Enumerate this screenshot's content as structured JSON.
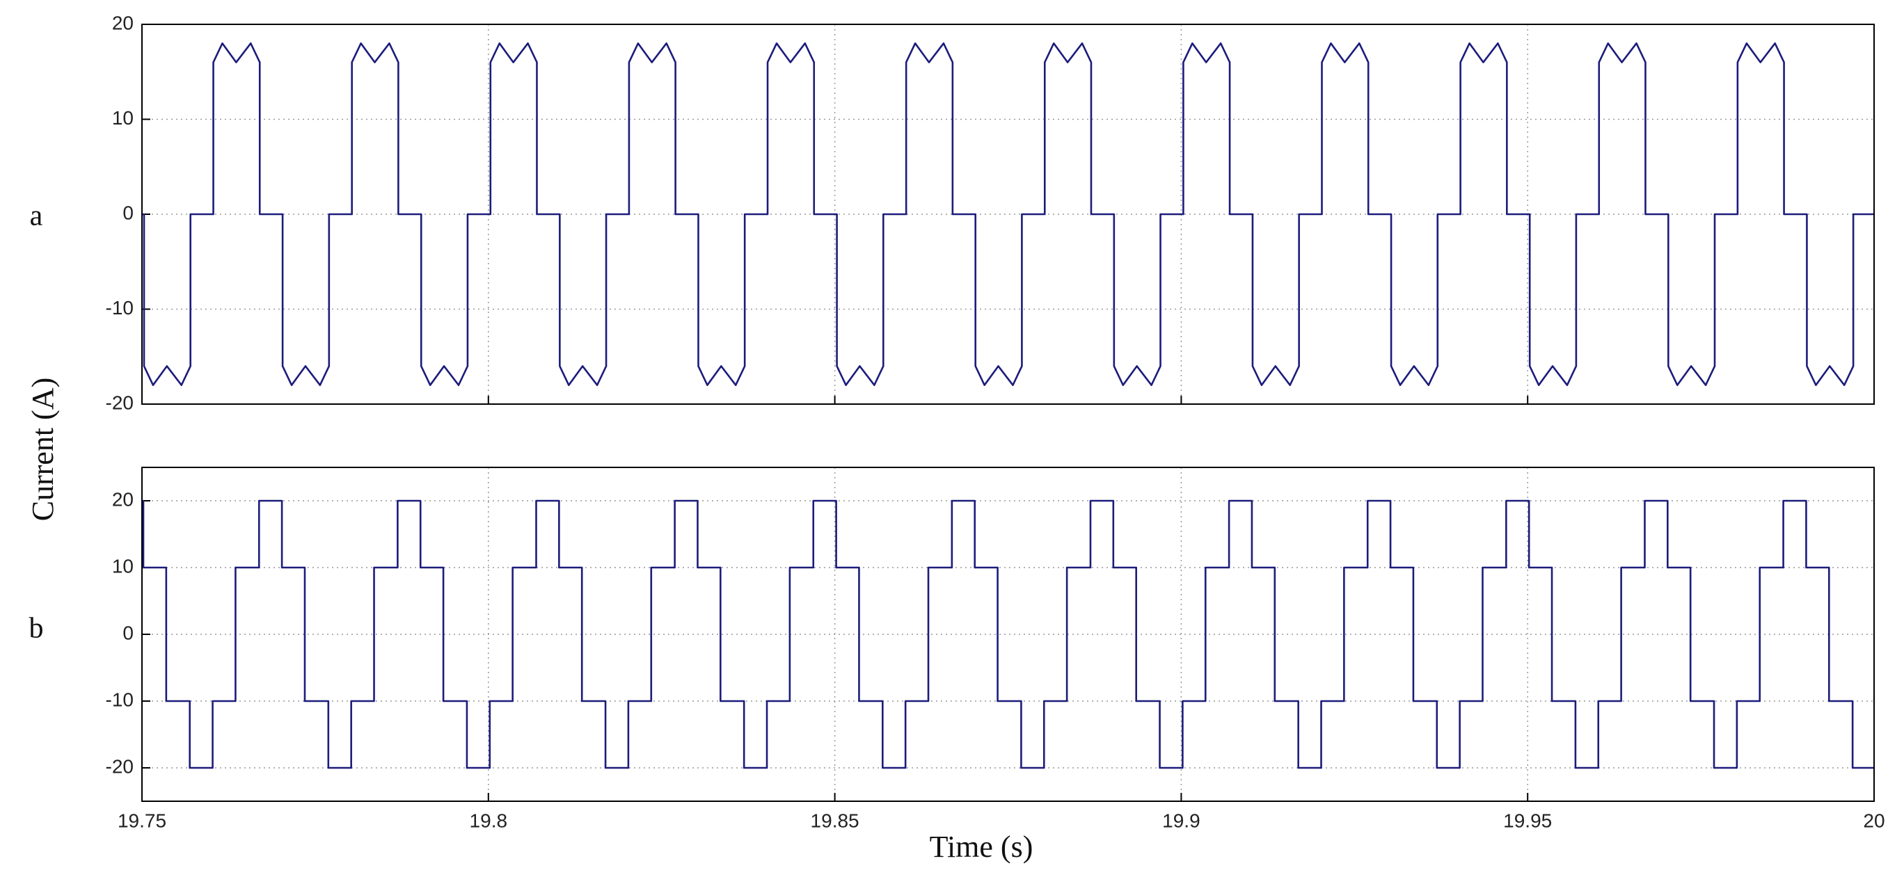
{
  "chart_data": [
    {
      "type": "line",
      "label": "a",
      "ylabel": "Current (A)",
      "color": "#1c1c7c",
      "grid": true,
      "xticklabels": false,
      "xlim": [
        19.75,
        20
      ],
      "xticks": [
        19.75,
        19.8,
        19.85,
        19.9,
        19.95,
        20
      ],
      "ylim": [
        -20,
        20
      ],
      "yticks": [
        -20,
        -10,
        0,
        10,
        20
      ],
      "x": [
        19.75,
        19.7503,
        19.7503,
        19.7516,
        19.7536,
        19.7557,
        19.757,
        19.757,
        19.7603,
        19.7603,
        19.7616,
        19.7636,
        19.7657,
        19.767,
        19.767,
        19.7703,
        19.7703,
        19.7716,
        19.7736,
        19.7757,
        19.777,
        19.777,
        19.7803,
        19.7803,
        19.7816,
        19.7836,
        19.7857,
        19.787,
        19.787,
        19.7903,
        19.7903,
        19.7916,
        19.7936,
        19.7957,
        19.797,
        19.797,
        19.8003,
        19.8003,
        19.8016,
        19.8036,
        19.8057,
        19.807,
        19.807,
        19.8103,
        19.8103,
        19.8116,
        19.8136,
        19.8157,
        19.817,
        19.817,
        19.8203,
        19.8203,
        19.8216,
        19.8236,
        19.8257,
        19.827,
        19.827,
        19.8303,
        19.8303,
        19.8316,
        19.8336,
        19.8357,
        19.837,
        19.837,
        19.8403,
        19.8403,
        19.8416,
        19.8436,
        19.8457,
        19.847,
        19.847,
        19.8503,
        19.8503,
        19.8516,
        19.8536,
        19.8557,
        19.857,
        19.857,
        19.8603,
        19.8603,
        19.8616,
        19.8636,
        19.8657,
        19.867,
        19.867,
        19.8703,
        19.8703,
        19.8716,
        19.8736,
        19.8757,
        19.877,
        19.877,
        19.8803,
        19.8803,
        19.8816,
        19.8836,
        19.8857,
        19.887,
        19.887,
        19.8903,
        19.8903,
        19.8916,
        19.8936,
        19.8957,
        19.897,
        19.897,
        19.9003,
        19.9003,
        19.9016,
        19.9036,
        19.9057,
        19.907,
        19.907,
        19.9103,
        19.9103,
        19.9116,
        19.9136,
        19.9157,
        19.917,
        19.917,
        19.9203,
        19.9203,
        19.9216,
        19.9236,
        19.9257,
        19.927,
        19.927,
        19.9303,
        19.9303,
        19.9316,
        19.9336,
        19.9357,
        19.937,
        19.937,
        19.9403,
        19.9403,
        19.9416,
        19.9436,
        19.9457,
        19.947,
        19.947,
        19.9503,
        19.9503,
        19.9516,
        19.9536,
        19.9557,
        19.957,
        19.957,
        19.9603,
        19.9603,
        19.9616,
        19.9636,
        19.9657,
        19.967,
        19.967,
        19.9703,
        19.9703,
        19.9716,
        19.9736,
        19.9757,
        19.977,
        19.977,
        19.9803,
        19.9803,
        19.9816,
        19.9836,
        19.9857,
        19.987,
        19.987,
        19.9903,
        19.9903,
        19.9916,
        19.9936,
        19.9957,
        19.997,
        19.997,
        20
      ],
      "values": [
        0,
        0,
        -16,
        -18,
        -16,
        -18,
        -16,
        0,
        0,
        16,
        18,
        16,
        18,
        16,
        0,
        0,
        -16,
        -18,
        -16,
        -18,
        -16,
        0,
        0,
        16,
        18,
        16,
        18,
        16,
        0,
        0,
        -16,
        -18,
        -16,
        -18,
        -16,
        0,
        0,
        16,
        18,
        16,
        18,
        16,
        0,
        0,
        -16,
        -18,
        -16,
        -18,
        -16,
        0,
        0,
        16,
        18,
        16,
        18,
        16,
        0,
        0,
        -16,
        -18,
        -16,
        -18,
        -16,
        0,
        0,
        16,
        18,
        16,
        18,
        16,
        0,
        0,
        -16,
        -18,
        -16,
        -18,
        -16,
        0,
        0,
        16,
        18,
        16,
        18,
        16,
        0,
        0,
        -16,
        -18,
        -16,
        -18,
        -16,
        0,
        0,
        16,
        18,
        16,
        18,
        16,
        0,
        0,
        -16,
        -18,
        -16,
        -18,
        -16,
        0,
        0,
        16,
        18,
        16,
        18,
        16,
        0,
        0,
        -16,
        -18,
        -16,
        -18,
        -16,
        0,
        0,
        16,
        18,
        16,
        18,
        16,
        0,
        0,
        -16,
        -18,
        -16,
        -18,
        -16,
        0,
        0,
        16,
        18,
        16,
        18,
        16,
        0,
        0,
        -16,
        -18,
        -16,
        -18,
        -16,
        0,
        0,
        16,
        18,
        16,
        18,
        16,
        0,
        0,
        -16,
        -18,
        -16,
        -18,
        -16,
        0,
        0,
        16,
        18,
        16,
        18,
        16,
        0,
        0,
        -16,
        -18,
        -16,
        -18,
        -16,
        0,
        0
      ]
    },
    {
      "type": "line",
      "label": "b",
      "xlabel": "Time (s)",
      "color": "#1c1c7c",
      "grid": true,
      "xticklabels": true,
      "xlim": [
        19.75,
        20
      ],
      "xticks": [
        19.75,
        19.8,
        19.85,
        19.9,
        19.95,
        20
      ],
      "ylim": [
        -25,
        25
      ],
      "yticks": [
        -20,
        -10,
        0,
        10,
        20
      ],
      "x": [
        19.75,
        19.7502,
        19.7502,
        19.7535,
        19.7535,
        19.7569,
        19.7569,
        19.7602,
        19.7602,
        19.7635,
        19.7635,
        19.7669,
        19.7669,
        19.7702,
        19.7702,
        19.7735,
        19.7735,
        19.7769,
        19.7769,
        19.7802,
        19.7802,
        19.7835,
        19.7835,
        19.7869,
        19.7869,
        19.7902,
        19.7902,
        19.7935,
        19.7935,
        19.7969,
        19.7969,
        19.8002,
        19.8002,
        19.8035,
        19.8035,
        19.8069,
        19.8069,
        19.8102,
        19.8102,
        19.8135,
        19.8135,
        19.8169,
        19.8169,
        19.8202,
        19.8202,
        19.8235,
        19.8235,
        19.8269,
        19.8269,
        19.8302,
        19.8302,
        19.8335,
        19.8335,
        19.8369,
        19.8369,
        19.8402,
        19.8402,
        19.8435,
        19.8435,
        19.8469,
        19.8469,
        19.8502,
        19.8502,
        19.8535,
        19.8535,
        19.8569,
        19.8569,
        19.8602,
        19.8602,
        19.8635,
        19.8635,
        19.8669,
        19.8669,
        19.8702,
        19.8702,
        19.8735,
        19.8735,
        19.8769,
        19.8769,
        19.8802,
        19.8802,
        19.8835,
        19.8835,
        19.8869,
        19.8869,
        19.8902,
        19.8902,
        19.8935,
        19.8935,
        19.8969,
        19.8969,
        19.9002,
        19.9002,
        19.9035,
        19.9035,
        19.9069,
        19.9069,
        19.9102,
        19.9102,
        19.9135,
        19.9135,
        19.9169,
        19.9169,
        19.9202,
        19.9202,
        19.9235,
        19.9235,
        19.9269,
        19.9269,
        19.9302,
        19.9302,
        19.9335,
        19.9335,
        19.9369,
        19.9369,
        19.9402,
        19.9402,
        19.9435,
        19.9435,
        19.9469,
        19.9469,
        19.9502,
        19.9502,
        19.9535,
        19.9535,
        19.9569,
        19.9569,
        19.9602,
        19.9602,
        19.9635,
        19.9635,
        19.9669,
        19.9669,
        19.9702,
        19.9702,
        19.9735,
        19.9735,
        19.9769,
        19.9769,
        19.9802,
        19.9802,
        19.9835,
        19.9835,
        19.9869,
        19.9869,
        19.9902,
        19.9902,
        19.9935,
        19.9935,
        19.9969,
        19.9969,
        20
      ],
      "values": [
        20,
        20,
        10,
        10,
        -10,
        -10,
        -20,
        -20,
        -10,
        -10,
        10,
        10,
        20,
        20,
        10,
        10,
        -10,
        -10,
        -20,
        -20,
        -10,
        -10,
        10,
        10,
        20,
        20,
        10,
        10,
        -10,
        -10,
        -20,
        -20,
        -10,
        -10,
        10,
        10,
        20,
        20,
        10,
        10,
        -10,
        -10,
        -20,
        -20,
        -10,
        -10,
        10,
        10,
        20,
        20,
        10,
        10,
        -10,
        -10,
        -20,
        -20,
        -10,
        -10,
        10,
        10,
        20,
        20,
        10,
        10,
        -10,
        -10,
        -20,
        -20,
        -10,
        -10,
        10,
        10,
        20,
        20,
        10,
        10,
        -10,
        -10,
        -20,
        -20,
        -10,
        -10,
        10,
        10,
        20,
        20,
        10,
        10,
        -10,
        -10,
        -20,
        -20,
        -10,
        -10,
        10,
        10,
        20,
        20,
        10,
        10,
        -10,
        -10,
        -20,
        -20,
        -10,
        -10,
        10,
        10,
        20,
        20,
        10,
        10,
        -10,
        -10,
        -20,
        -20,
        -10,
        -10,
        10,
        10,
        20,
        20,
        10,
        10,
        -10,
        -10,
        -20,
        -20,
        -10,
        -10,
        10,
        10,
        20,
        20,
        10,
        10,
        -10,
        -10,
        -20,
        -20,
        -10,
        -10,
        10,
        10,
        20,
        20,
        10,
        10,
        -10,
        -10,
        -20,
        -20
      ]
    }
  ]
}
